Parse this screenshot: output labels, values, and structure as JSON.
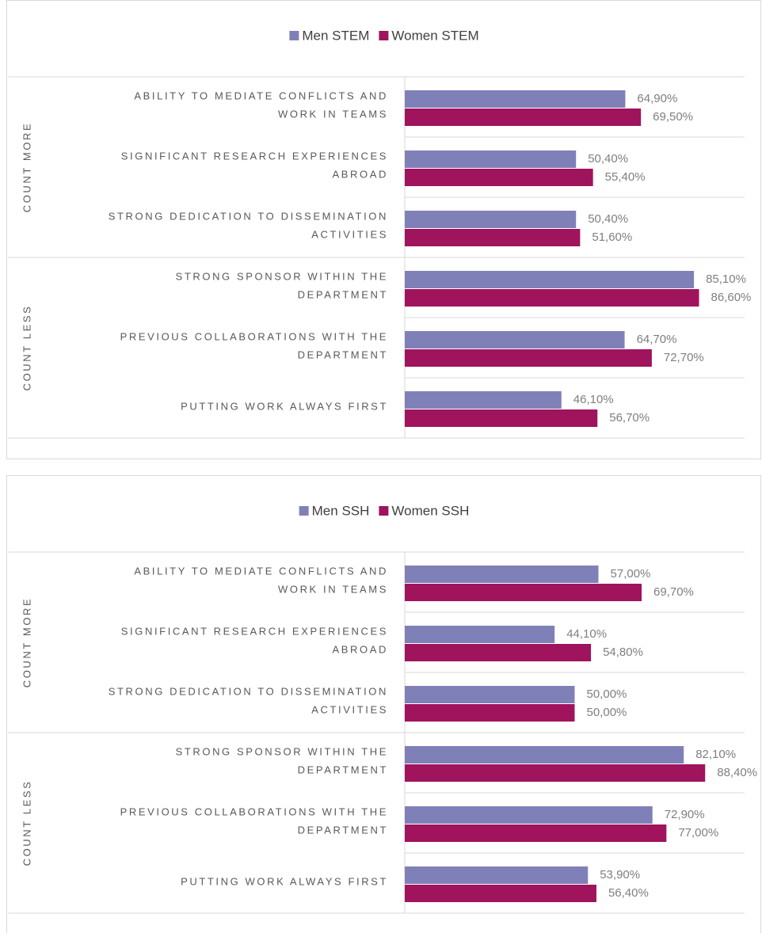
{
  "chart_data": [
    {
      "type": "bar",
      "orientation": "horizontal",
      "groups": [
        {
          "name": "COUNT MORE",
          "categories": [
            "ABILITY TO MEDIATE CONFLICTS AND\nWORK IN TEAMS",
            "SIGNIFICANT RESEARCH EXPERIENCES\nABROAD",
            "STRONG DEDICATION TO DISSEMINATION\nACTIVITIES"
          ]
        },
        {
          "name": "COUNT LESS",
          "categories": [
            "STRONG SPONSOR WITHIN THE\nDEPARTMENT",
            "PREVIOUS COLLABORATIONS WITH THE\nDEPARTMENT",
            "PUTTING WORK ALWAYS FIRST"
          ]
        }
      ],
      "series": [
        {
          "name": "Men STEM",
          "color": "#8080b9",
          "values": [
            64.9,
            50.4,
            50.4,
            85.1,
            64.7,
            46.1
          ],
          "value_labels": [
            "64,90%",
            "50,40%",
            "50,40%",
            "85,10%",
            "64,70%",
            "46,10%"
          ]
        },
        {
          "name": "Women STEM",
          "color": "#a0135d",
          "values": [
            69.5,
            55.4,
            51.6,
            86.6,
            72.7,
            56.7
          ],
          "value_labels": [
            "69,50%",
            "55,40%",
            "51,60%",
            "86,60%",
            "72,70%",
            "56,70%"
          ]
        }
      ],
      "xlim": [
        0,
        100
      ],
      "legend": "top"
    },
    {
      "type": "bar",
      "orientation": "horizontal",
      "groups": [
        {
          "name": "COUNT MORE",
          "categories": [
            "ABILITY TO MEDIATE CONFLICTS AND\nWORK IN TEAMS",
            "SIGNIFICANT RESEARCH EXPERIENCES\nABROAD",
            "STRONG DEDICATION TO DISSEMINATION\nACTIVITIES"
          ]
        },
        {
          "name": "COUNT LESS",
          "categories": [
            "STRONG SPONSOR WITHIN THE\nDEPARTMENT",
            "PREVIOUS COLLABORATIONS WITH THE\nDEPARTMENT",
            "PUTTING WORK ALWAYS FIRST"
          ]
        }
      ],
      "series": [
        {
          "name": "Men SSH",
          "color": "#8080b9",
          "values": [
            57.0,
            44.1,
            50.0,
            82.1,
            72.9,
            53.9
          ],
          "value_labels": [
            "57,00%",
            "44,10%",
            "50,00%",
            "82,10%",
            "72,90%",
            "53,90%"
          ]
        },
        {
          "name": "Women SSH",
          "color": "#a0135d",
          "values": [
            69.7,
            54.8,
            50.0,
            88.4,
            77.0,
            56.4
          ],
          "value_labels": [
            "69,70%",
            "54,80%",
            "50,00%",
            "88,40%",
            "77,00%",
            "56,40%"
          ]
        }
      ],
      "xlim": [
        0,
        100
      ],
      "legend": "top"
    }
  ]
}
